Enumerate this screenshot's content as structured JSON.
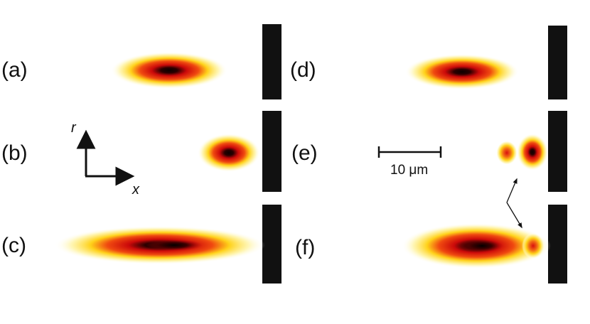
{
  "panels": {
    "a": {
      "label": "(a)"
    },
    "b": {
      "label": "(b)"
    },
    "c": {
      "label": "(c)"
    },
    "d": {
      "label": "(d)"
    },
    "e": {
      "label": "(e)"
    },
    "f": {
      "label": "(f)"
    }
  },
  "axes": {
    "r_label": "r",
    "x_label": "x"
  },
  "scale_bar": {
    "label": "10 μm"
  },
  "colors": {
    "barrier": "#111111",
    "core": "#0d0000",
    "inner": "#cc0a0a",
    "mid": "#e83a0e",
    "outer": "#ffd21a",
    "halo": "#fff7c0"
  }
}
